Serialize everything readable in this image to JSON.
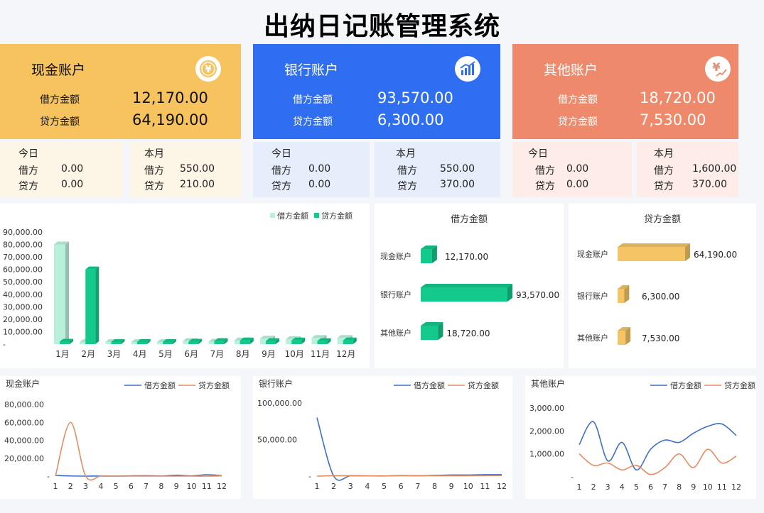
{
  "title": "出纳日记账管理系统",
  "accounts": [
    {
      "name": "现金账户",
      "debit_label": "借方金额",
      "debit": "12,170.00",
      "credit_label": "贷方金额",
      "credit": "64,190.00",
      "icon": "yen-coin-icon",
      "color": "#f7c35f",
      "today": {
        "label": "今日",
        "debit_label": "借方",
        "debit": "0.00",
        "credit_label": "贷方",
        "credit": "0.00"
      },
      "month": {
        "label": "本月",
        "debit_label": "借方",
        "debit": "550.00",
        "credit_label": "贷方",
        "credit": "210.00"
      },
      "sub_bg": "#fdf6e7"
    },
    {
      "name": "银行账户",
      "debit_label": "借方金额",
      "debit": "93,570.00",
      "credit_label": "贷方金额",
      "credit": "6,300.00",
      "icon": "bar-growth-icon",
      "color": "#2f6ef0",
      "today": {
        "label": "今日",
        "debit_label": "借方",
        "debit": "0.00",
        "credit_label": "贷方",
        "credit": "0.00"
      },
      "month": {
        "label": "本月",
        "debit_label": "借方",
        "debit": "550.00",
        "credit_label": "贷方",
        "credit": "370.00"
      },
      "sub_bg": "#e6eefc"
    },
    {
      "name": "其他账户",
      "debit_label": "借方金额",
      "debit": "18,720.00",
      "credit_label": "贷方金额",
      "credit": "7,530.00",
      "icon": "yen-trend-icon",
      "color": "#ee8a6b",
      "today": {
        "label": "今日",
        "debit_label": "借方",
        "debit": "0.00",
        "credit_label": "贷方",
        "credit": "0.00"
      },
      "month": {
        "label": "本月",
        "debit_label": "借方",
        "debit": "1,600.00",
        "credit_label": "贷方",
        "credit": "370.00"
      },
      "sub_bg": "#fdece7"
    }
  ],
  "chart_data": [
    {
      "type": "bar",
      "legend": [
        "借方金额",
        "贷方金额"
      ],
      "categories": [
        "1月",
        "2月",
        "3月",
        "4月",
        "5月",
        "6月",
        "7月",
        "8月",
        "9月",
        "10月",
        "11月",
        "12月"
      ],
      "series": [
        {
          "name": "借方金额",
          "color": "#b9f0dc",
          "values": [
            80000,
            0,
            1200,
            1500,
            1300,
            2500,
            2000,
            3000,
            4500,
            4000,
            5000,
            5000
          ]
        },
        {
          "name": "贷方金额",
          "color": "#13c98b",
          "values": [
            2000,
            60000,
            1500,
            1200,
            1500,
            2000,
            2500,
            3000,
            2500,
            3000,
            2500,
            3000
          ]
        }
      ],
      "yticks": [
        "90,000.00",
        "80,000.00",
        "70,000.00",
        "60,000.00",
        "50,000.00",
        "40,000.00",
        "30,000.00",
        "20,000.00",
        "10,000.00",
        "-"
      ],
      "ylim": [
        0,
        90000
      ]
    },
    {
      "type": "bar",
      "title": "借方金额",
      "orientation": "horizontal",
      "color": "#13c98b",
      "categories": [
        "现金账户",
        "银行账户",
        "其他账户"
      ],
      "values": [
        12170,
        93570,
        18720
      ],
      "labels": [
        "12,170.00",
        "93,570.00",
        "18,720.00"
      ]
    },
    {
      "type": "bar",
      "title": "贷方金额",
      "orientation": "horizontal",
      "color": "#f5c565",
      "categories": [
        "现金账户",
        "银行账户",
        "其他账户"
      ],
      "values": [
        64190,
        6300,
        7530
      ],
      "labels": [
        "64,190.00",
        "6,300.00",
        "7,530.00"
      ]
    },
    {
      "type": "line",
      "title": "现金账户",
      "legend": [
        "借方金额",
        "贷方金额"
      ],
      "x": [
        "1",
        "2",
        "3",
        "4",
        "5",
        "6",
        "7",
        "8",
        "9",
        "10",
        "11",
        "12"
      ],
      "series": [
        {
          "name": "借方金额",
          "color": "#3d6fc9",
          "values": [
            800,
            200,
            0,
            100,
            0,
            300,
            500,
            200,
            1000,
            300,
            1500,
            500
          ]
        },
        {
          "name": "贷方金额",
          "color": "#e58c62",
          "values": [
            0,
            60000,
            0,
            0,
            0,
            0,
            0,
            0,
            0,
            0,
            0,
            200
          ]
        }
      ],
      "yticks": [
        "80,000.00",
        "60,000.00",
        "40,000.00",
        "20,000.00",
        "-"
      ],
      "ylim": [
        0,
        80000
      ]
    },
    {
      "type": "line",
      "title": "银行账户",
      "legend": [
        "借方金额",
        "贷方金额"
      ],
      "x": [
        "1",
        "2",
        "3",
        "4",
        "5",
        "6",
        "7",
        "8",
        "9",
        "10",
        "11",
        "12"
      ],
      "series": [
        {
          "name": "借方金额",
          "color": "#3d6fc9",
          "values": [
            80000,
            0,
            500,
            300,
            200,
            800,
            500,
            1000,
            1500,
            1500,
            2000,
            2000
          ]
        },
        {
          "name": "贷方金额",
          "color": "#e58c62",
          "values": [
            0,
            500,
            500,
            300,
            300,
            500,
            500,
            500,
            500,
            500,
            700,
            800
          ]
        }
      ],
      "yticks": [
        "100,000.00",
        "50,000.00",
        "-"
      ],
      "ylim": [
        0,
        100000
      ]
    },
    {
      "type": "line",
      "title": "其他账户",
      "legend": [
        "借方金额",
        "贷方金额"
      ],
      "x": [
        "1",
        "2",
        "3",
        "4",
        "5",
        "6",
        "7",
        "8",
        "9",
        "10",
        "11",
        "12"
      ],
      "series": [
        {
          "name": "借方金额",
          "color": "#3d6fc9",
          "values": [
            1400,
            2400,
            700,
            1500,
            300,
            1200,
            1600,
            1500,
            1900,
            2200,
            2300,
            1800
          ]
        },
        {
          "name": "贷方金额",
          "color": "#e58c62",
          "values": [
            1000,
            500,
            600,
            300,
            500,
            100,
            400,
            1000,
            400,
            1200,
            600,
            900
          ]
        }
      ],
      "yticks": [
        "3,000.00",
        "2,000.00",
        "1,000.00",
        "-"
      ],
      "ylim": [
        0,
        3000
      ]
    }
  ]
}
